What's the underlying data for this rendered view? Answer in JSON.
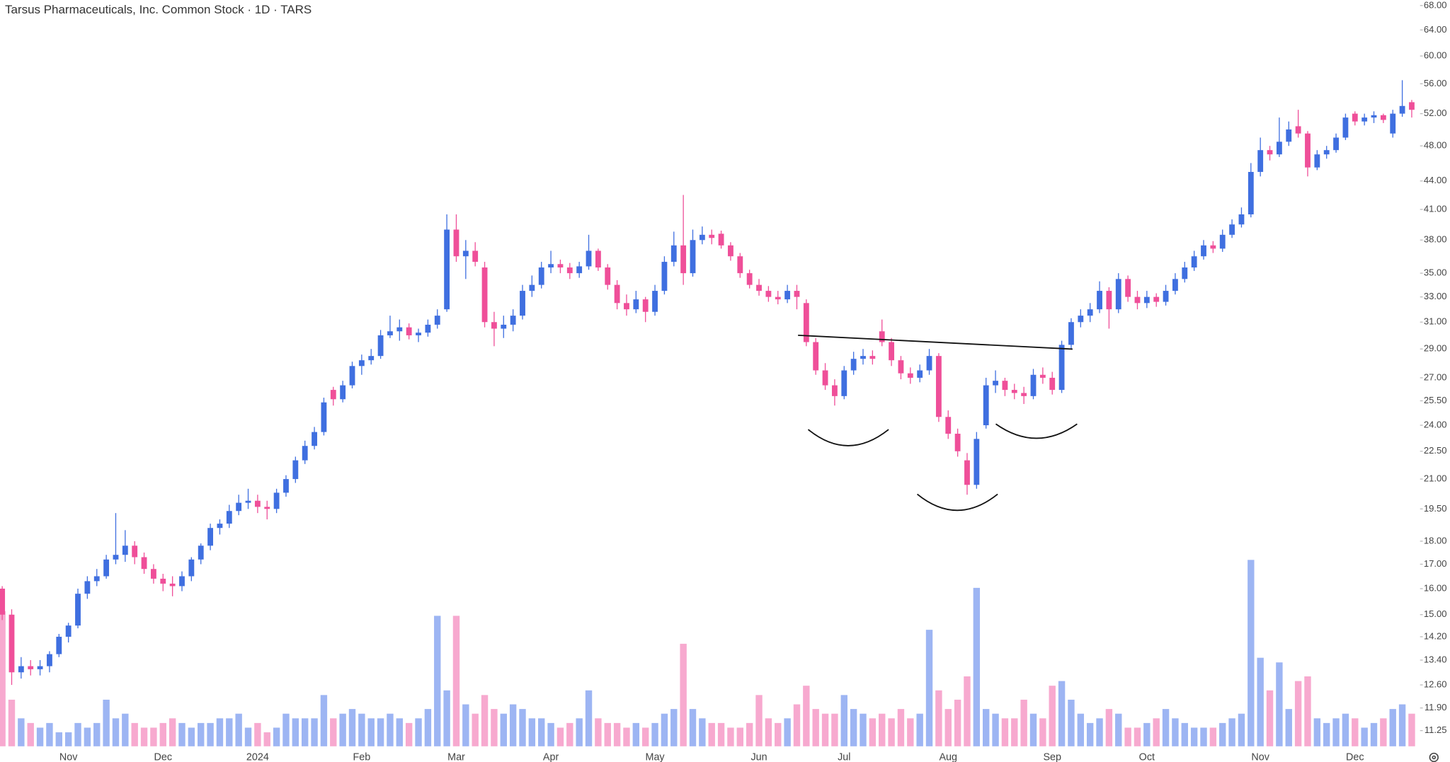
{
  "chart_data": {
    "type": "candlestick",
    "title": "Tarsus Pharmaceuticals, Inc. Common Stock · 1D · TARS",
    "log_scale": true,
    "ylim": [
      10.82,
      68.94
    ],
    "yticks": [
      {
        "value": 68,
        "label": "68.00"
      },
      {
        "value": 64,
        "label": "64.00"
      },
      {
        "value": 60,
        "label": "60.00"
      },
      {
        "value": 56,
        "label": "56.00"
      },
      {
        "value": 52,
        "label": "52.00"
      },
      {
        "value": 48,
        "label": "48.00"
      },
      {
        "value": 44,
        "label": "44.00"
      },
      {
        "value": 41,
        "label": "41.00"
      },
      {
        "value": 38,
        "label": "38.00"
      },
      {
        "value": 35,
        "label": "35.00"
      },
      {
        "value": 33,
        "label": "33.00"
      },
      {
        "value": 31,
        "label": "31.00"
      },
      {
        "value": 29,
        "label": "29.00"
      },
      {
        "value": 27,
        "label": "27.00"
      },
      {
        "value": 25.5,
        "label": "25.50"
      },
      {
        "value": 24,
        "label": "24.00"
      },
      {
        "value": 22.5,
        "label": "22.50"
      },
      {
        "value": 21,
        "label": "21.00"
      },
      {
        "value": 19.5,
        "label": "19.50"
      },
      {
        "value": 18,
        "label": "18.00"
      },
      {
        "value": 17,
        "label": "17.00"
      },
      {
        "value": 16,
        "label": "16.00"
      },
      {
        "value": 15,
        "label": "15.00"
      },
      {
        "value": 14.2,
        "label": "14.20"
      },
      {
        "value": 13.4,
        "label": "13.40"
      },
      {
        "value": 12.6,
        "label": "12.60"
      },
      {
        "value": 11.9,
        "label": "11.90"
      },
      {
        "value": 11.25,
        "label": "11.25"
      }
    ],
    "up_color": "#3f6fe0",
    "down_color": "#ef4f99",
    "volume_up_color": "#9db5f3",
    "volume_down_color": "#f7a9cf",
    "vlim": [
      0,
      4.4
    ],
    "categories": [
      null,
      null,
      null,
      null,
      null,
      null,
      null,
      "Nov",
      null,
      null,
      null,
      null,
      null,
      null,
      null,
      null,
      null,
      "Dec",
      null,
      null,
      null,
      null,
      null,
      null,
      null,
      null,
      null,
      "2024",
      null,
      null,
      null,
      null,
      null,
      null,
      null,
      null,
      null,
      null,
      "Feb",
      null,
      null,
      null,
      null,
      null,
      null,
      null,
      null,
      null,
      "Mar",
      null,
      null,
      null,
      null,
      null,
      null,
      null,
      null,
      null,
      "Apr",
      null,
      null,
      null,
      null,
      null,
      null,
      null,
      null,
      null,
      null,
      "May",
      null,
      null,
      null,
      null,
      null,
      null,
      null,
      null,
      null,
      null,
      "Jun",
      null,
      null,
      null,
      null,
      null,
      null,
      null,
      null,
      "Jul",
      null,
      null,
      null,
      null,
      null,
      null,
      null,
      null,
      null,
      null,
      "Aug",
      null,
      null,
      null,
      null,
      null,
      null,
      null,
      null,
      null,
      null,
      "Sep",
      null,
      null,
      null,
      null,
      null,
      null,
      null,
      null,
      null,
      "Oct",
      null,
      null,
      null,
      null,
      null,
      null,
      null,
      null,
      null,
      null,
      null,
      "Nov",
      null,
      null,
      null,
      null,
      null,
      null,
      null,
      null,
      null,
      "Dec",
      null,
      null,
      null,
      null,
      null,
      null
    ],
    "ohlc": [
      [
        16.0,
        16.1,
        14.8,
        15.0
      ],
      [
        15.0,
        15.2,
        12.6,
        13.0
      ],
      [
        13.0,
        13.5,
        12.8,
        13.2
      ],
      [
        13.2,
        13.4,
        12.9,
        13.1
      ],
      [
        13.1,
        13.4,
        12.9,
        13.2
      ],
      [
        13.2,
        13.7,
        13.0,
        13.6
      ],
      [
        13.6,
        14.3,
        13.5,
        14.2
      ],
      [
        14.2,
        14.7,
        14.0,
        14.6
      ],
      [
        14.6,
        16.0,
        14.5,
        15.8
      ],
      [
        15.8,
        16.5,
        15.6,
        16.3
      ],
      [
        16.3,
        16.8,
        16.1,
        16.5
      ],
      [
        16.5,
        17.4,
        16.4,
        17.2
      ],
      [
        17.2,
        19.3,
        17.0,
        17.4
      ],
      [
        17.4,
        18.5,
        17.1,
        17.8
      ],
      [
        17.8,
        18.0,
        17.0,
        17.3
      ],
      [
        17.3,
        17.5,
        16.6,
        16.8
      ],
      [
        16.8,
        17.0,
        16.2,
        16.4
      ],
      [
        16.4,
        16.6,
        15.9,
        16.2
      ],
      [
        16.2,
        16.5,
        15.7,
        16.1
      ],
      [
        16.1,
        16.7,
        15.9,
        16.5
      ],
      [
        16.5,
        17.3,
        16.3,
        17.2
      ],
      [
        17.2,
        17.9,
        17.0,
        17.8
      ],
      [
        17.8,
        18.8,
        17.6,
        18.6
      ],
      [
        18.6,
        19.0,
        18.3,
        18.8
      ],
      [
        18.8,
        19.7,
        18.6,
        19.4
      ],
      [
        19.4,
        20.2,
        19.2,
        19.8
      ],
      [
        19.8,
        20.5,
        19.5,
        19.9
      ],
      [
        19.9,
        20.2,
        19.3,
        19.6
      ],
      [
        19.6,
        19.9,
        19.0,
        19.5
      ],
      [
        19.5,
        20.5,
        19.3,
        20.3
      ],
      [
        20.3,
        21.2,
        20.1,
        21.0
      ],
      [
        21.0,
        22.2,
        20.8,
        22.0
      ],
      [
        22.0,
        23.1,
        21.8,
        22.8
      ],
      [
        22.8,
        23.9,
        22.6,
        23.6
      ],
      [
        23.6,
        25.7,
        23.4,
        25.4
      ],
      [
        26.2,
        26.4,
        25.2,
        25.6
      ],
      [
        25.6,
        26.8,
        25.4,
        26.5
      ],
      [
        26.5,
        28.1,
        26.3,
        27.8
      ],
      [
        27.8,
        28.6,
        27.2,
        28.2
      ],
      [
        28.2,
        29.0,
        27.9,
        28.5
      ],
      [
        28.5,
        30.4,
        28.3,
        30.0
      ],
      [
        30.0,
        31.5,
        29.8,
        30.3
      ],
      [
        30.3,
        31.2,
        29.6,
        30.6
      ],
      [
        30.6,
        30.9,
        29.7,
        30.0
      ],
      [
        30.0,
        30.5,
        29.5,
        30.2
      ],
      [
        30.2,
        31.2,
        29.9,
        30.8
      ],
      [
        30.8,
        32.0,
        30.5,
        31.5
      ],
      [
        32.0,
        40.5,
        31.8,
        39.0
      ],
      [
        39.0,
        40.5,
        36.0,
        36.5
      ],
      [
        36.5,
        38.0,
        34.5,
        37.0
      ],
      [
        37.0,
        37.8,
        35.6,
        36.0
      ],
      [
        35.5,
        36.0,
        30.6,
        31.0
      ],
      [
        31.0,
        31.8,
        29.2,
        30.5
      ],
      [
        30.5,
        31.5,
        29.8,
        30.8
      ],
      [
        30.8,
        32.0,
        30.3,
        31.5
      ],
      [
        31.5,
        34.0,
        31.2,
        33.5
      ],
      [
        33.5,
        34.8,
        33.0,
        34.0
      ],
      [
        34.0,
        36.0,
        33.7,
        35.5
      ],
      [
        35.5,
        37.0,
        35.0,
        35.8
      ],
      [
        35.8,
        36.2,
        35.0,
        35.5
      ],
      [
        35.5,
        35.9,
        34.5,
        35.0
      ],
      [
        35.0,
        36.0,
        34.6,
        35.6
      ],
      [
        35.6,
        38.5,
        35.3,
        37.0
      ],
      [
        37.0,
        37.2,
        35.2,
        35.5
      ],
      [
        35.5,
        35.8,
        33.6,
        34.0
      ],
      [
        34.0,
        34.4,
        32.0,
        32.5
      ],
      [
        32.5,
        33.2,
        31.5,
        32.0
      ],
      [
        32.0,
        33.5,
        31.7,
        32.8
      ],
      [
        32.8,
        33.0,
        31.0,
        31.8
      ],
      [
        31.8,
        34.0,
        31.5,
        33.5
      ],
      [
        33.5,
        36.5,
        33.2,
        36.0
      ],
      [
        36.0,
        38.8,
        35.6,
        37.5
      ],
      [
        37.5,
        42.5,
        34.0,
        35.0
      ],
      [
        35.0,
        39.0,
        34.7,
        38.0
      ],
      [
        38.0,
        39.3,
        37.6,
        38.5
      ],
      [
        38.5,
        39.0,
        37.6,
        38.2
      ],
      [
        38.6,
        38.9,
        37.2,
        37.5
      ],
      [
        37.5,
        37.8,
        36.1,
        36.5
      ],
      [
        36.5,
        36.8,
        34.6,
        35.0
      ],
      [
        35.0,
        35.3,
        33.7,
        34.0
      ],
      [
        34.0,
        34.5,
        33.1,
        33.5
      ],
      [
        33.5,
        33.9,
        32.6,
        33.0
      ],
      [
        33.0,
        33.5,
        32.4,
        32.8
      ],
      [
        32.8,
        34.0,
        32.5,
        33.5
      ],
      [
        33.5,
        34.0,
        32.0,
        33.0
      ],
      [
        32.5,
        32.8,
        29.2,
        29.5
      ],
      [
        29.5,
        29.8,
        27.2,
        27.5
      ],
      [
        27.5,
        28.0,
        26.2,
        26.5
      ],
      [
        26.5,
        26.9,
        25.2,
        25.8
      ],
      [
        25.8,
        27.8,
        25.6,
        27.5
      ],
      [
        27.5,
        28.8,
        27.2,
        28.3
      ],
      [
        28.3,
        29.0,
        27.9,
        28.5
      ],
      [
        28.5,
        28.9,
        27.9,
        28.3
      ],
      [
        30.3,
        31.2,
        29.2,
        29.5
      ],
      [
        29.5,
        29.8,
        27.8,
        28.2
      ],
      [
        28.2,
        28.5,
        26.9,
        27.3
      ],
      [
        27.3,
        27.7,
        26.6,
        27.0
      ],
      [
        27.0,
        27.9,
        26.7,
        27.5
      ],
      [
        27.5,
        29.0,
        27.2,
        28.5
      ],
      [
        28.5,
        28.7,
        24.2,
        24.5
      ],
      [
        24.5,
        24.9,
        23.2,
        23.5
      ],
      [
        23.5,
        23.8,
        22.2,
        22.5
      ],
      [
        22.0,
        22.4,
        20.2,
        20.7
      ],
      [
        20.7,
        23.6,
        20.5,
        23.2
      ],
      [
        24.0,
        27.0,
        23.8,
        26.5
      ],
      [
        26.5,
        27.5,
        26.0,
        26.8
      ],
      [
        26.8,
        27.0,
        25.8,
        26.2
      ],
      [
        26.2,
        26.6,
        25.6,
        26.0
      ],
      [
        26.0,
        26.4,
        25.3,
        25.8
      ],
      [
        25.8,
        27.6,
        25.6,
        27.2
      ],
      [
        27.2,
        27.7,
        26.6,
        27.0
      ],
      [
        27.0,
        27.4,
        25.9,
        26.2
      ],
      [
        26.2,
        29.6,
        26.0,
        29.3
      ],
      [
        29.3,
        31.3,
        29.0,
        31.0
      ],
      [
        31.0,
        32.0,
        30.6,
        31.5
      ],
      [
        31.5,
        32.5,
        31.0,
        32.0
      ],
      [
        32.0,
        34.3,
        31.7,
        33.5
      ],
      [
        33.5,
        33.8,
        30.5,
        32.0
      ],
      [
        32.0,
        35.0,
        31.7,
        34.5
      ],
      [
        34.5,
        34.8,
        32.6,
        33.0
      ],
      [
        33.0,
        33.5,
        32.0,
        32.5
      ],
      [
        32.5,
        33.5,
        32.1,
        33.0
      ],
      [
        33.0,
        33.3,
        32.2,
        32.6
      ],
      [
        32.6,
        34.0,
        32.3,
        33.5
      ],
      [
        33.5,
        35.0,
        33.2,
        34.5
      ],
      [
        34.5,
        36.0,
        34.2,
        35.5
      ],
      [
        35.5,
        37.0,
        35.2,
        36.5
      ],
      [
        36.5,
        38.0,
        36.2,
        37.5
      ],
      [
        37.5,
        37.9,
        36.8,
        37.2
      ],
      [
        37.2,
        39.0,
        36.9,
        38.5
      ],
      [
        38.5,
        40.0,
        38.2,
        39.5
      ],
      [
        39.5,
        41.2,
        39.2,
        40.5
      ],
      [
        40.5,
        46.0,
        40.2,
        45.0
      ],
      [
        45.0,
        49.0,
        44.5,
        47.5
      ],
      [
        47.5,
        48.0,
        46.3,
        47.0
      ],
      [
        47.0,
        51.5,
        46.7,
        48.5
      ],
      [
        48.5,
        51.0,
        48.0,
        50.0
      ],
      [
        50.4,
        52.5,
        49.0,
        49.5
      ],
      [
        49.5,
        49.8,
        44.5,
        45.5
      ],
      [
        45.5,
        47.5,
        45.2,
        47.0
      ],
      [
        47.0,
        48.0,
        46.5,
        47.5
      ],
      [
        47.5,
        49.5,
        47.2,
        49.0
      ],
      [
        49.0,
        52.0,
        48.7,
        51.5
      ],
      [
        52.0,
        52.3,
        50.5,
        51.0
      ],
      [
        51.0,
        52.0,
        50.5,
        51.5
      ],
      [
        51.5,
        52.3,
        50.8,
        51.8
      ],
      [
        51.8,
        52.0,
        50.8,
        51.2
      ],
      [
        49.5,
        52.5,
        49.0,
        52.0
      ],
      [
        52.0,
        56.5,
        51.6,
        53.0
      ],
      [
        53.5,
        53.8,
        51.5,
        52.5
      ]
    ],
    "volume": [
      2.9,
      1.0,
      0.6,
      0.5,
      0.4,
      0.5,
      0.3,
      0.3,
      0.5,
      0.4,
      0.5,
      1.0,
      0.6,
      0.7,
      0.5,
      0.4,
      0.4,
      0.5,
      0.6,
      0.5,
      0.4,
      0.5,
      0.5,
      0.6,
      0.6,
      0.7,
      0.4,
      0.5,
      0.3,
      0.4,
      0.7,
      0.6,
      0.6,
      0.6,
      1.1,
      0.6,
      0.7,
      0.8,
      0.7,
      0.6,
      0.6,
      0.7,
      0.6,
      0.5,
      0.6,
      0.8,
      2.8,
      1.2,
      2.8,
      0.9,
      0.7,
      1.1,
      0.8,
      0.7,
      0.9,
      0.8,
      0.6,
      0.6,
      0.5,
      0.4,
      0.5,
      0.6,
      1.2,
      0.6,
      0.5,
      0.5,
      0.4,
      0.5,
      0.4,
      0.5,
      0.7,
      0.8,
      2.2,
      0.8,
      0.6,
      0.5,
      0.5,
      0.4,
      0.4,
      0.5,
      1.1,
      0.6,
      0.5,
      0.6,
      0.9,
      1.3,
      0.8,
      0.7,
      0.7,
      1.1,
      0.8,
      0.7,
      0.6,
      0.7,
      0.6,
      0.8,
      0.6,
      0.7,
      2.5,
      1.2,
      0.8,
      1.0,
      1.5,
      3.4,
      0.8,
      0.7,
      0.6,
      0.6,
      1.0,
      0.7,
      0.6,
      1.3,
      1.4,
      1.0,
      0.7,
      0.5,
      0.6,
      0.8,
      0.7,
      0.4,
      0.4,
      0.5,
      0.6,
      0.8,
      0.6,
      0.5,
      0.4,
      0.4,
      0.4,
      0.5,
      0.6,
      0.7,
      4.0,
      1.9,
      1.2,
      1.8,
      0.8,
      1.4,
      1.5,
      0.6,
      0.5,
      0.6,
      0.7,
      0.6,
      0.4,
      0.5,
      0.6,
      0.8,
      0.9,
      0.7
    ]
  }
}
